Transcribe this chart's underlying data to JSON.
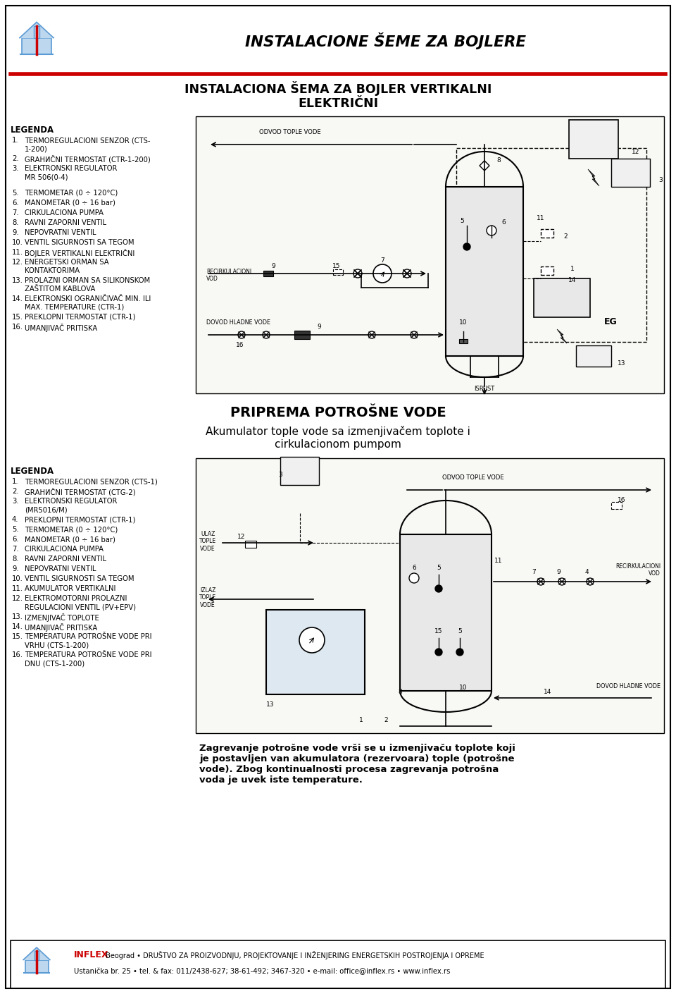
{
  "title_main": "INSTALACIONE ŠEME ZA BOJLERE",
  "title_sub1": "INSTALACIONA ŠEMA ZA BOJLER VERTIKALNI",
  "title_sub2": "ELEKTRIČNI",
  "bg_color": "#ffffff",
  "legend1_title": "LEGENDA",
  "legend1_items": [
    [
      "1.",
      "TERMOREGULACIONI SENZOR (CTS-\n1-200)"
    ],
    [
      "2.",
      "GRАНИČNI TERMOSTAT (CTR-1-200)"
    ],
    [
      "3.",
      "ELEKTRONSKI REGULATOR\nMR 506(0-4)"
    ],
    [
      "",
      ""
    ],
    [
      "5.",
      "TERMOMETAR (0 ÷ 120°C)"
    ],
    [
      "6.",
      "MANOMETAR (0 ÷ 16 bar)"
    ],
    [
      "7.",
      "CIRKULACIONA PUMPA"
    ],
    [
      "8.",
      "RAVNI ZAPORNI VENTIL"
    ],
    [
      "9.",
      "NEPOVRATNI VENTIL"
    ],
    [
      "10.",
      "VENTIL SIGURNOSTI SA TEGOM"
    ],
    [
      "11.",
      "BOJLER VERTIKALNI ELEKTRIČNI"
    ],
    [
      "12.",
      "ENERGETSKI ORMAN SA\nKONTAKTORIMA"
    ],
    [
      "13.",
      "PROLAZNI ORMAN SA SILIKONSKOM\nZAŠTITOM KABLOVA"
    ],
    [
      "14.",
      "ELEKTRONSKI OGRANIČIVAČ MIN. ILI\nMAX. TEMPERATURE (CTR-1)"
    ],
    [
      "15.",
      "PREKLOPNI TERMOSTAT (CTR-1)"
    ],
    [
      "16.",
      "UMANJIVAČ PRITISKA"
    ]
  ],
  "legend2_title": "LEGENDA",
  "legend2_items": [
    [
      "1.",
      "TERMOREGULACIONI SENZOR (CTS-1)"
    ],
    [
      "2.",
      "GRАНИČNI TERMOSTAT (CTG-2)"
    ],
    [
      "3.",
      "ELEKTRONSKI REGULATOR\n(MR5016/M)"
    ],
    [
      "4.",
      "PREKLOPNI TERMOSTAT (CTR-1)"
    ],
    [
      "5.",
      "TERMOMETAR (0 ÷ 120°C)"
    ],
    [
      "6.",
      "MANOMETAR (0 ÷ 16 bar)"
    ],
    [
      "7.",
      "CIRKULACIONA PUMPA"
    ],
    [
      "8.",
      "RAVNI ZAPORNI VENTIL"
    ],
    [
      "9.",
      "NEPOVRATNI VENTIL"
    ],
    [
      "10.",
      "VENTIL SIGURNOSTI SA TEGOM"
    ],
    [
      "11.",
      "AKUMULATOR VERTIKALNI"
    ],
    [
      "12.",
      "ELEKTROMOTORNI PROLAZNI\nREGULACIONI VENTIL (PV+EPV)"
    ],
    [
      "13.",
      "IZMENJIVAČ TOPLOTE"
    ],
    [
      "14.",
      "UMANJIVAČ PRITISKA"
    ],
    [
      "15.",
      "TEMPERATURA POTROŠNE VODE PRI\nVRHU (CTS-1-200)"
    ],
    [
      "16.",
      "TEMPERATURA POTROŠNE VODE PRI\nDNU (CTS-1-200)"
    ]
  ],
  "diagram1_caption1": "PRIPREMA POTROŠNE VODE",
  "diagram1_caption2": "Akumulator tople vode sa izmenjivačem toplote i",
  "diagram1_caption3": "cirkulacionom pumpom",
  "diagram2_text_bold": "Zagrevanje potrošne vode vrši se u izmenjivaču toplote koji\nje postavljen van akumulatora (rezervoara) tople (potrošne\nvode). Zbog kontinualnosti procesa zagrevanja potrošna\nvoda je uvek iste temperature.",
  "footer_inflex": "INFLEX",
  "footer_rest": " Beograd • DRUŠTVO ZA PROIZVODNJU, PROJEKTOVANJE I INŽENJERING ENERGETSKIH POSTROJENJA I OPREME",
  "footer_address": "Ustanička br. 25 • tel. & fax: 011/2438-627; 38-61-492; 3467-320 • e-mail: office@inflex.rs • www.inflex.rs",
  "red_color": "#cc0000",
  "blue_color": "#5b9bd5",
  "light_blue": "#bdd7ee"
}
